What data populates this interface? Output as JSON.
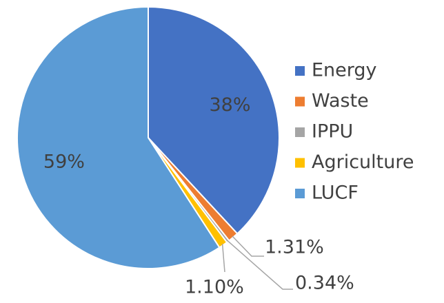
{
  "chart_data": {
    "type": "pie",
    "categories": [
      "Energy",
      "Waste",
      "IPPU",
      "Agriculture",
      "LUCF"
    ],
    "values": [
      38,
      1.31,
      0.34,
      1.1,
      59
    ],
    "value_labels": [
      "38%",
      "1.31%",
      "0.34%",
      "1.10%",
      "59%"
    ],
    "colors": [
      "#4472c4",
      "#ed7d31",
      "#a5a5a5",
      "#ffc000",
      "#5b9bd5"
    ],
    "legend": "right"
  }
}
